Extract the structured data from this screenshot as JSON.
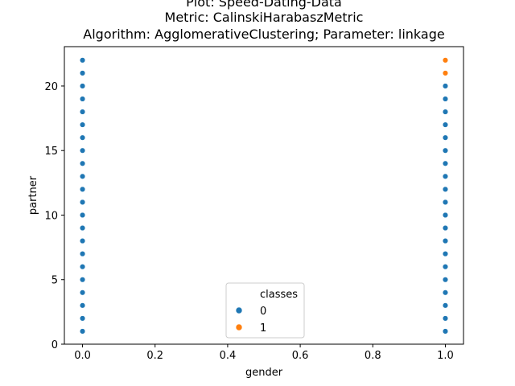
{
  "chart_data": {
    "type": "scatter",
    "title_lines": [
      "Plot: Speed-Dating-Data",
      "Metric: CalinskiHarabaszMetric",
      "Algorithm: AgglomerativeClustering; Parameter: linkage"
    ],
    "xlabel": "gender",
    "ylabel": "partner",
    "xlim": [
      -0.05,
      1.05
    ],
    "ylim": [
      0,
      23.05
    ],
    "xticks": [
      0.0,
      0.2,
      0.4,
      0.6,
      0.8,
      1.0
    ],
    "xtick_labels": [
      "0.0",
      "0.2",
      "0.4",
      "0.6",
      "0.8",
      "1.0"
    ],
    "yticks": [
      0,
      5,
      10,
      15,
      20
    ],
    "ytick_labels": [
      "0",
      "5",
      "10",
      "15",
      "20"
    ],
    "grid": false,
    "legend": {
      "title": "classes",
      "placement": "bottom-center",
      "entries": [
        {
          "label": "0",
          "color": "#1f77b4"
        },
        {
          "label": "1",
          "color": "#ff7f0e"
        }
      ]
    },
    "series": [
      {
        "name": "0",
        "color": "#1f77b4",
        "points": [
          [
            0,
            1
          ],
          [
            0,
            2
          ],
          [
            0,
            3
          ],
          [
            0,
            4
          ],
          [
            0,
            5
          ],
          [
            0,
            6
          ],
          [
            0,
            7
          ],
          [
            0,
            8
          ],
          [
            0,
            9
          ],
          [
            0,
            10
          ],
          [
            0,
            11
          ],
          [
            0,
            12
          ],
          [
            0,
            13
          ],
          [
            0,
            14
          ],
          [
            0,
            15
          ],
          [
            0,
            16
          ],
          [
            0,
            17
          ],
          [
            0,
            18
          ],
          [
            0,
            19
          ],
          [
            0,
            20
          ],
          [
            0,
            21
          ],
          [
            0,
            22
          ],
          [
            1,
            1
          ],
          [
            1,
            2
          ],
          [
            1,
            3
          ],
          [
            1,
            4
          ],
          [
            1,
            5
          ],
          [
            1,
            6
          ],
          [
            1,
            7
          ],
          [
            1,
            8
          ],
          [
            1,
            9
          ],
          [
            1,
            10
          ],
          [
            1,
            11
          ],
          [
            1,
            12
          ],
          [
            1,
            13
          ],
          [
            1,
            14
          ],
          [
            1,
            15
          ],
          [
            1,
            16
          ],
          [
            1,
            17
          ],
          [
            1,
            18
          ],
          [
            1,
            19
          ],
          [
            1,
            20
          ]
        ]
      },
      {
        "name": "1",
        "color": "#ff7f0e",
        "points": [
          [
            1,
            21
          ],
          [
            1,
            22
          ]
        ]
      }
    ]
  }
}
